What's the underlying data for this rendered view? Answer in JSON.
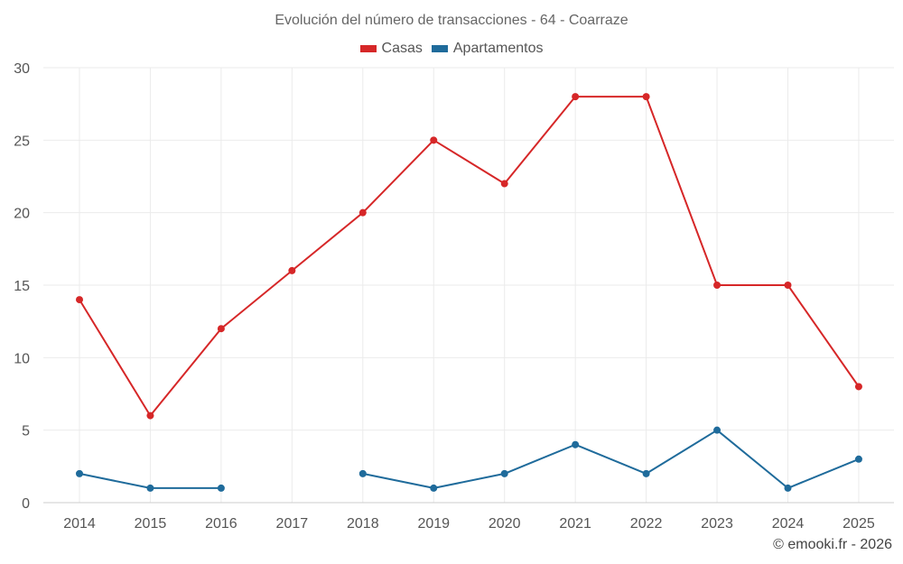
{
  "chart_data": {
    "type": "line",
    "title": "Evolución del número de transacciones - 64 - Coarraze",
    "categories": [
      "2014",
      "2015",
      "2016",
      "2017",
      "2018",
      "2019",
      "2020",
      "2021",
      "2022",
      "2023",
      "2024",
      "2025"
    ],
    "series": [
      {
        "name": "Casas",
        "color": "#d62728",
        "values": [
          14,
          6,
          12,
          16,
          20,
          25,
          22,
          28,
          28,
          15,
          15,
          8
        ]
      },
      {
        "name": "Apartamentos",
        "color": "#1f6b9b",
        "values": [
          2,
          1,
          1,
          null,
          2,
          1,
          2,
          4,
          2,
          5,
          1,
          3
        ]
      }
    ],
    "ylim": [
      0,
      30
    ],
    "yticks": [
      0,
      5,
      10,
      15,
      20,
      25,
      30
    ],
    "xlabel": "",
    "ylabel": "",
    "grid": true,
    "legend_position": "top-center"
  },
  "credit": "© emooki.fr - 2026"
}
